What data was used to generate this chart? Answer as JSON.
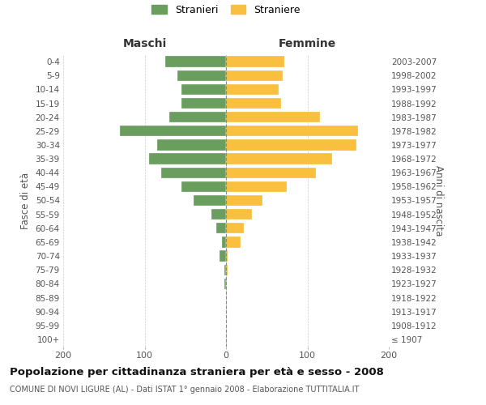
{
  "age_groups": [
    "0-4",
    "5-9",
    "10-14",
    "15-19",
    "20-24",
    "25-29",
    "30-34",
    "35-39",
    "40-44",
    "45-49",
    "50-54",
    "55-59",
    "60-64",
    "65-69",
    "70-74",
    "75-79",
    "80-84",
    "85-89",
    "90-94",
    "95-99",
    "100+"
  ],
  "birth_years": [
    "2003-2007",
    "1998-2002",
    "1993-1997",
    "1988-1992",
    "1983-1987",
    "1978-1982",
    "1973-1977",
    "1968-1972",
    "1963-1967",
    "1958-1962",
    "1953-1957",
    "1948-1952",
    "1943-1947",
    "1938-1942",
    "1933-1937",
    "1928-1932",
    "1923-1927",
    "1918-1922",
    "1913-1917",
    "1908-1912",
    "≤ 1907"
  ],
  "maschi": [
    75,
    60,
    55,
    55,
    70,
    130,
    85,
    95,
    80,
    55,
    40,
    18,
    12,
    5,
    8,
    2,
    2,
    0,
    0,
    0,
    0
  ],
  "femmine": [
    72,
    70,
    65,
    68,
    115,
    162,
    160,
    130,
    110,
    75,
    45,
    32,
    22,
    18,
    2,
    2,
    1,
    0,
    0,
    0,
    0
  ],
  "maschi_color": "#6a9e5e",
  "femmine_color": "#f9c040",
  "background_color": "#ffffff",
  "grid_color": "#cccccc",
  "center_line_color": "#888888",
  "title": "Popolazione per cittadinanza straniera per età e sesso - 2008",
  "subtitle": "COMUNE DI NOVI LIGURE (AL) - Dati ISTAT 1° gennaio 2008 - Elaborazione TUTTITALIA.IT",
  "ylabel_left": "Fasce di età",
  "ylabel_right": "Anni di nascita",
  "header_left": "Maschi",
  "header_right": "Femmine",
  "legend_stranieri": "Stranieri",
  "legend_straniere": "Straniere",
  "xlim": 200
}
